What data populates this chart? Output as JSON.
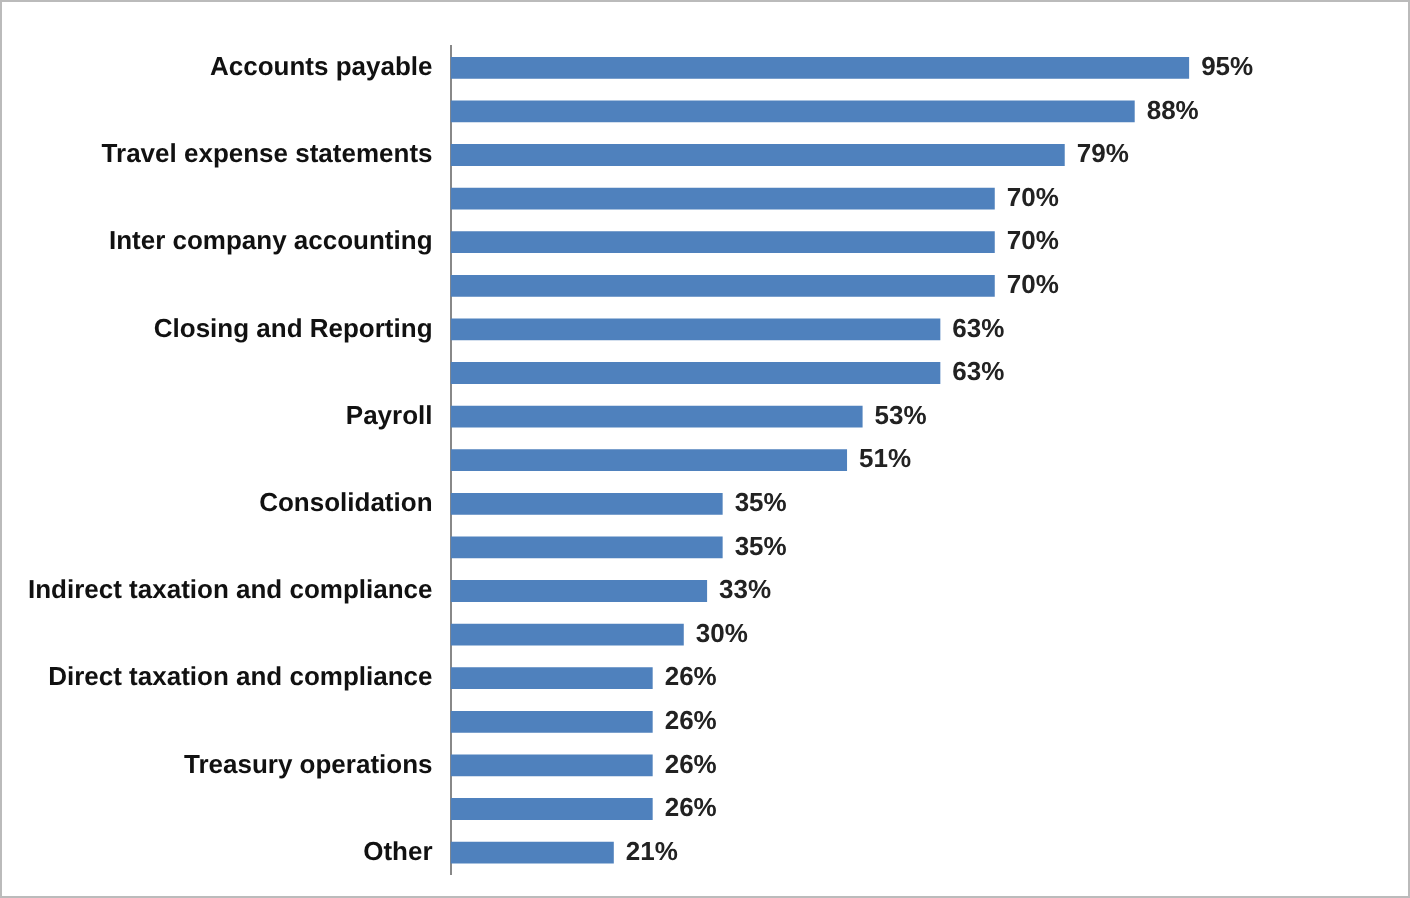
{
  "chart_data": {
    "type": "bar",
    "orientation": "horizontal",
    "categories": [
      "Accounts payable",
      null,
      "Travel expense statements",
      null,
      "Inter company accounting",
      null,
      "Closing and Reporting",
      null,
      "Payroll",
      null,
      "Consolidation",
      null,
      "Indirect taxation and compliance",
      null,
      "Direct taxation and compliance",
      null,
      "Treasury operations",
      null,
      "Other"
    ],
    "values": [
      95,
      88,
      79,
      70,
      70,
      70,
      63,
      63,
      53,
      51,
      35,
      35,
      33,
      30,
      26,
      26,
      26,
      26,
      21
    ],
    "value_labels": [
      "95%",
      "88%",
      "79%",
      "70%",
      "70%",
      "70%",
      "63%",
      "63%",
      "53%",
      "51%",
      "35%",
      "35%",
      "33%",
      "30%",
      "26%",
      "26%",
      "26%",
      "26%",
      "21%"
    ],
    "color": "#4f81bd",
    "tick_labels": "y",
    "grid": false,
    "legend": false
  }
}
